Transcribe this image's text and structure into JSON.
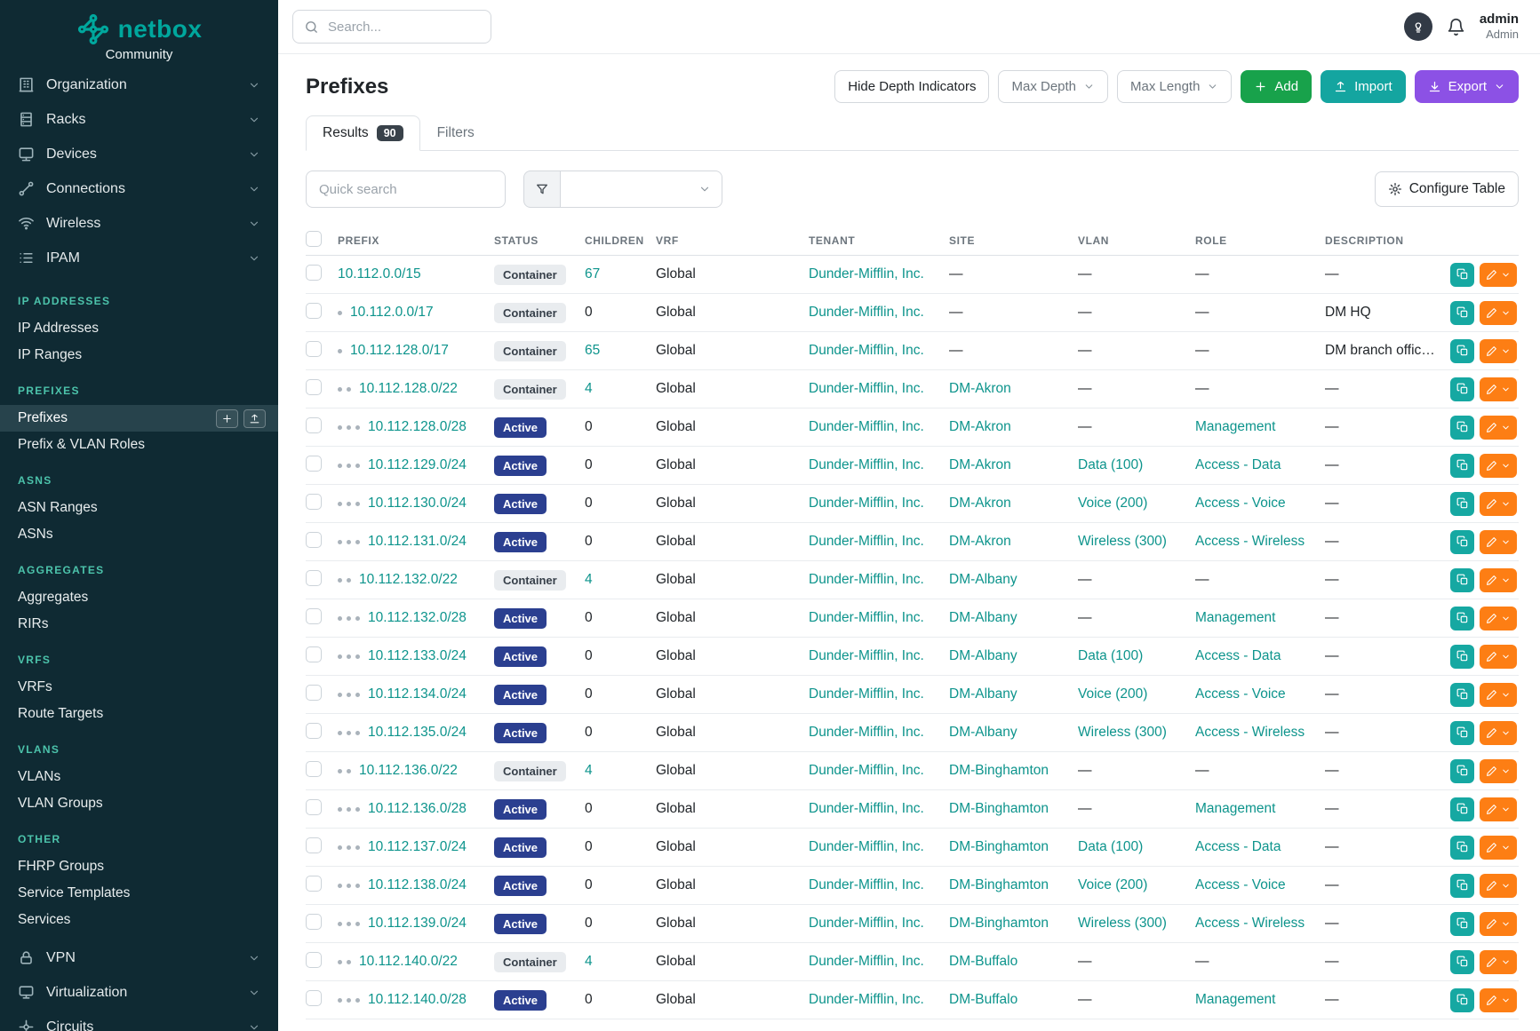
{
  "brand": {
    "name": "netbox",
    "subtitle": "Community"
  },
  "topbar": {
    "search_placeholder": "Search...",
    "user_name": "admin",
    "user_role": "Admin"
  },
  "sidebar": {
    "nav_top": [
      {
        "label": "Organization",
        "icon": "building-icon"
      },
      {
        "label": "Racks",
        "icon": "rack-icon"
      },
      {
        "label": "Devices",
        "icon": "devices-icon"
      },
      {
        "label": "Connections",
        "icon": "connections-icon"
      },
      {
        "label": "Wireless",
        "icon": "wifi-icon"
      },
      {
        "label": "IPAM",
        "icon": "ipam-icon"
      }
    ],
    "sections": [
      {
        "header": "IP ADDRESSES",
        "items": [
          {
            "label": "IP Addresses"
          },
          {
            "label": "IP Ranges"
          }
        ]
      },
      {
        "header": "PREFIXES",
        "items": [
          {
            "label": "Prefixes",
            "active": true
          },
          {
            "label": "Prefix & VLAN Roles"
          }
        ]
      },
      {
        "header": "ASNS",
        "items": [
          {
            "label": "ASN Ranges"
          },
          {
            "label": "ASNs"
          }
        ]
      },
      {
        "header": "AGGREGATES",
        "items": [
          {
            "label": "Aggregates"
          },
          {
            "label": "RIRs"
          }
        ]
      },
      {
        "header": "VRFS",
        "items": [
          {
            "label": "VRFs"
          },
          {
            "label": "Route Targets"
          }
        ]
      },
      {
        "header": "VLANS",
        "items": [
          {
            "label": "VLANs"
          },
          {
            "label": "VLAN Groups"
          }
        ]
      },
      {
        "header": "OTHER",
        "items": [
          {
            "label": "FHRP Groups"
          },
          {
            "label": "Service Templates"
          },
          {
            "label": "Services"
          }
        ]
      }
    ],
    "nav_bottom": [
      {
        "label": "VPN",
        "icon": "vpn-icon"
      },
      {
        "label": "Virtualization",
        "icon": "virtualization-icon"
      },
      {
        "label": "Circuits",
        "icon": "circuits-icon"
      }
    ]
  },
  "page": {
    "title": "Prefixes",
    "buttons": {
      "hide_depth": "Hide Depth Indicators",
      "max_depth": "Max Depth",
      "max_length": "Max Length",
      "add": "Add",
      "import": "Import",
      "export": "Export"
    },
    "tabs": [
      {
        "label": "Results",
        "count": "90",
        "active": true
      },
      {
        "label": "Filters",
        "active": false
      }
    ],
    "toolbar": {
      "quick_search_placeholder": "Quick search",
      "configure_table": "Configure Table"
    }
  },
  "table": {
    "columns": {
      "prefix": "PREFIX",
      "status": "STATUS",
      "children": "CHILDREN",
      "vrf": "VRF",
      "tenant": "TENANT",
      "site": "SITE",
      "vlan": "VLAN",
      "role": "ROLE",
      "description": "DESCRIPTION"
    },
    "rows": [
      {
        "depth": 0,
        "prefix": "10.112.0.0/15",
        "status": "Container",
        "children": "67",
        "vrf": "Global",
        "tenant": "Dunder-Mifflin, Inc.",
        "site": "—",
        "vlan": "—",
        "role": "—",
        "description": "—"
      },
      {
        "depth": 1,
        "prefix": "10.112.0.0/17",
        "status": "Container",
        "children": "0",
        "vrf": "Global",
        "tenant": "Dunder-Mifflin, Inc.",
        "site": "—",
        "vlan": "—",
        "role": "—",
        "description": "DM HQ"
      },
      {
        "depth": 1,
        "prefix": "10.112.128.0/17",
        "status": "Container",
        "children": "65",
        "vrf": "Global",
        "tenant": "Dunder-Mifflin, Inc.",
        "site": "—",
        "vlan": "—",
        "role": "—",
        "description": "DM branch offices"
      },
      {
        "depth": 2,
        "prefix": "10.112.128.0/22",
        "status": "Container",
        "children": "4",
        "vrf": "Global",
        "tenant": "Dunder-Mifflin, Inc.",
        "site": "DM-Akron",
        "vlan": "—",
        "role": "—",
        "description": "—"
      },
      {
        "depth": 3,
        "prefix": "10.112.128.0/28",
        "status": "Active",
        "children": "0",
        "vrf": "Global",
        "tenant": "Dunder-Mifflin, Inc.",
        "site": "DM-Akron",
        "vlan": "—",
        "role": "Management",
        "description": "—"
      },
      {
        "depth": 3,
        "prefix": "10.112.129.0/24",
        "status": "Active",
        "children": "0",
        "vrf": "Global",
        "tenant": "Dunder-Mifflin, Inc.",
        "site": "DM-Akron",
        "vlan": "Data (100)",
        "role": "Access - Data",
        "description": "—"
      },
      {
        "depth": 3,
        "prefix": "10.112.130.0/24",
        "status": "Active",
        "children": "0",
        "vrf": "Global",
        "tenant": "Dunder-Mifflin, Inc.",
        "site": "DM-Akron",
        "vlan": "Voice (200)",
        "role": "Access - Voice",
        "description": "—"
      },
      {
        "depth": 3,
        "prefix": "10.112.131.0/24",
        "status": "Active",
        "children": "0",
        "vrf": "Global",
        "tenant": "Dunder-Mifflin, Inc.",
        "site": "DM-Akron",
        "vlan": "Wireless (300)",
        "role": "Access - Wireless",
        "description": "—"
      },
      {
        "depth": 2,
        "prefix": "10.112.132.0/22",
        "status": "Container",
        "children": "4",
        "vrf": "Global",
        "tenant": "Dunder-Mifflin, Inc.",
        "site": "DM-Albany",
        "vlan": "—",
        "role": "—",
        "description": "—"
      },
      {
        "depth": 3,
        "prefix": "10.112.132.0/28",
        "status": "Active",
        "children": "0",
        "vrf": "Global",
        "tenant": "Dunder-Mifflin, Inc.",
        "site": "DM-Albany",
        "vlan": "—",
        "role": "Management",
        "description": "—"
      },
      {
        "depth": 3,
        "prefix": "10.112.133.0/24",
        "status": "Active",
        "children": "0",
        "vrf": "Global",
        "tenant": "Dunder-Mifflin, Inc.",
        "site": "DM-Albany",
        "vlan": "Data (100)",
        "role": "Access - Data",
        "description": "—"
      },
      {
        "depth": 3,
        "prefix": "10.112.134.0/24",
        "status": "Active",
        "children": "0",
        "vrf": "Global",
        "tenant": "Dunder-Mifflin, Inc.",
        "site": "DM-Albany",
        "vlan": "Voice (200)",
        "role": "Access - Voice",
        "description": "—"
      },
      {
        "depth": 3,
        "prefix": "10.112.135.0/24",
        "status": "Active",
        "children": "0",
        "vrf": "Global",
        "tenant": "Dunder-Mifflin, Inc.",
        "site": "DM-Albany",
        "vlan": "Wireless (300)",
        "role": "Access - Wireless",
        "description": "—"
      },
      {
        "depth": 2,
        "prefix": "10.112.136.0/22",
        "status": "Container",
        "children": "4",
        "vrf": "Global",
        "tenant": "Dunder-Mifflin, Inc.",
        "site": "DM-Binghamton",
        "vlan": "—",
        "role": "—",
        "description": "—"
      },
      {
        "depth": 3,
        "prefix": "10.112.136.0/28",
        "status": "Active",
        "children": "0",
        "vrf": "Global",
        "tenant": "Dunder-Mifflin, Inc.",
        "site": "DM-Binghamton",
        "vlan": "—",
        "role": "Management",
        "description": "—"
      },
      {
        "depth": 3,
        "prefix": "10.112.137.0/24",
        "status": "Active",
        "children": "0",
        "vrf": "Global",
        "tenant": "Dunder-Mifflin, Inc.",
        "site": "DM-Binghamton",
        "vlan": "Data (100)",
        "role": "Access - Data",
        "description": "—"
      },
      {
        "depth": 3,
        "prefix": "10.112.138.0/24",
        "status": "Active",
        "children": "0",
        "vrf": "Global",
        "tenant": "Dunder-Mifflin, Inc.",
        "site": "DM-Binghamton",
        "vlan": "Voice (200)",
        "role": "Access - Voice",
        "description": "—"
      },
      {
        "depth": 3,
        "prefix": "10.112.139.0/24",
        "status": "Active",
        "children": "0",
        "vrf": "Global",
        "tenant": "Dunder-Mifflin, Inc.",
        "site": "DM-Binghamton",
        "vlan": "Wireless (300)",
        "role": "Access - Wireless",
        "description": "—"
      },
      {
        "depth": 2,
        "prefix": "10.112.140.0/22",
        "status": "Container",
        "children": "4",
        "vrf": "Global",
        "tenant": "Dunder-Mifflin, Inc.",
        "site": "DM-Buffalo",
        "vlan": "—",
        "role": "—",
        "description": "—"
      },
      {
        "depth": 3,
        "prefix": "10.112.140.0/28",
        "status": "Active",
        "children": "0",
        "vrf": "Global",
        "tenant": "Dunder-Mifflin, Inc.",
        "site": "DM-Buffalo",
        "vlan": "—",
        "role": "Management",
        "description": "—"
      }
    ]
  },
  "colors": {
    "brand_teal": "#00a79d",
    "link_teal": "#0d948c",
    "sidebar_bg": "#0f2a33",
    "section_header_teal": "#4cc3ab",
    "active_badge_blue": "#2b3f90",
    "container_badge_gray": "#e9ecef",
    "add_green": "#18a24b",
    "import_teal": "#14a5a0",
    "export_purple": "#8c51e5",
    "edit_orange": "#fd7e14"
  }
}
